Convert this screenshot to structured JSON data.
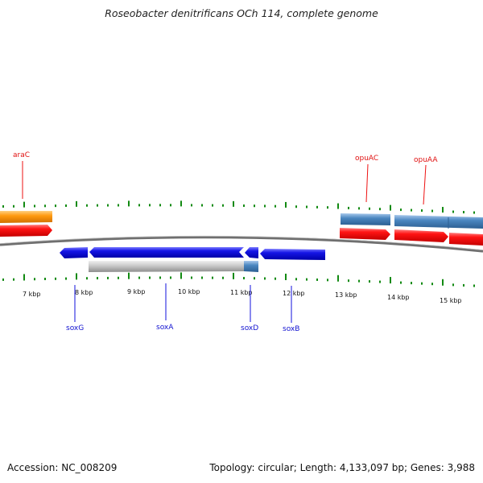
{
  "title": "Roseobacter denitrificans OCh 114, complete genome",
  "footer": {
    "accession": "Accession: NC_008209",
    "summary": "Topology: circular; Length: 4,133,097 bp; Genes: 3,988"
  },
  "scale": {
    "labels": [
      "7 kbp",
      "8 kbp",
      "9 kbp",
      "10 kbp",
      "11 kbp",
      "12 kbp",
      "13 kbp",
      "14 kbp",
      "15 kbp"
    ]
  },
  "genes": {
    "labels": {
      "araC": "araC",
      "opuAC": "opuAC",
      "opuAA": "opuAA",
      "soxG": "soxG",
      "soxA": "soxA",
      "soxD": "soxD",
      "soxB": "soxB"
    }
  },
  "colors": {
    "forward_gene": "#ee1111",
    "reverse_gene": "#1111dd",
    "orange_feature": "#ff9a10",
    "steelblue_feature": "#4a86c0",
    "gray_feature": "#c4c4c4",
    "ticks": "#118811",
    "backbone": "#777777"
  }
}
